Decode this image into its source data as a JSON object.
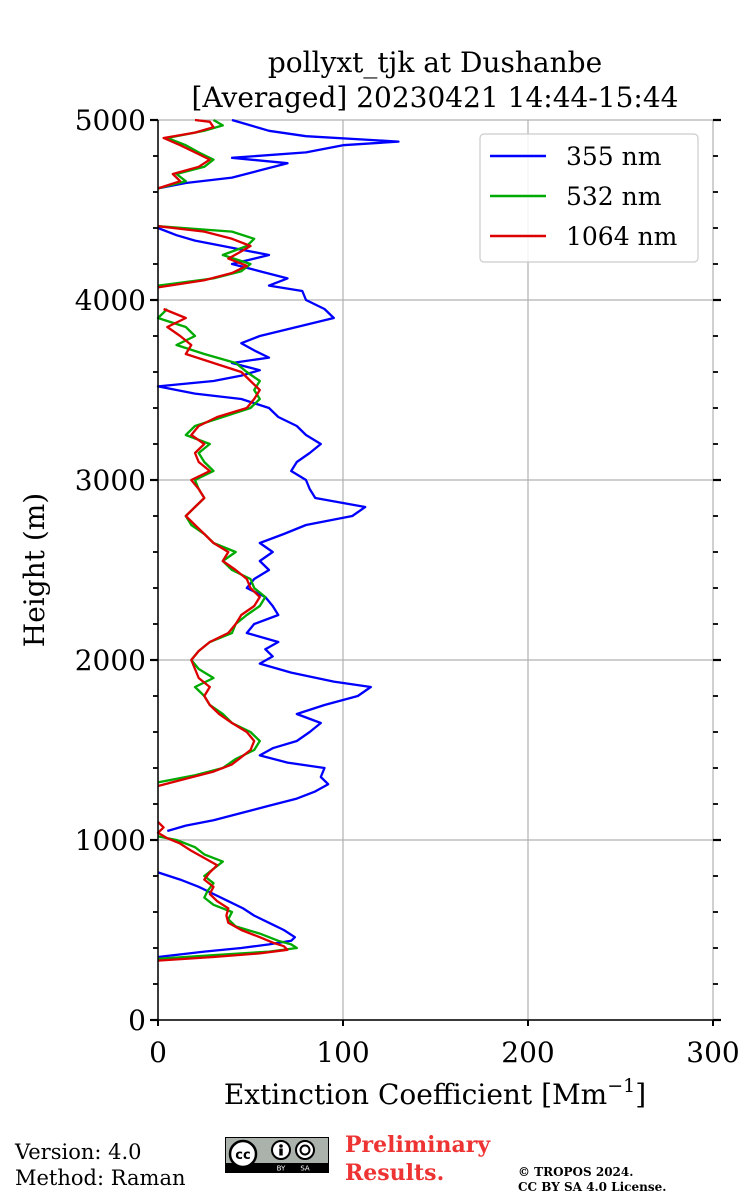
{
  "chart_data": {
    "type": "line",
    "title": "pollyxt_tjk at Dushanbe",
    "subtitle": "[Averaged] 20230421 14:44-15:44",
    "xlabel": "Extinction Coefficient [Mm",
    "xlabel_sup": "−1",
    "xlabel_close": "]",
    "ylabel": "Height (m)",
    "xlim": [
      0,
      300
    ],
    "ylim": [
      0,
      5000
    ],
    "xticks": [
      0,
      100,
      200,
      300
    ],
    "yticks": [
      0,
      1000,
      2000,
      3000,
      4000,
      5000
    ],
    "grid": true,
    "legend_position": "top-right",
    "series": [
      {
        "name": "355 nm",
        "color": "#0000ff",
        "segments": [
          {
            "y": [
              820,
              780,
              740,
              700,
              660,
              620,
              580,
              540,
              500,
              460,
              440,
              420,
              400,
              380,
              350
            ],
            "x": [
              0,
              12,
              22,
              30,
              38,
              46,
              52,
              60,
              68,
              74,
              72,
              60,
              45,
              25,
              0
            ]
          },
          {
            "y": [
              1050,
              1080,
              1110,
              1150,
              1190,
              1230,
              1270,
              1310,
              1350,
              1400,
              1430,
              1470,
              1510,
              1550,
              1600,
              1650,
              1700,
              1750,
              1800,
              1850,
              1880,
              1930,
              1980,
              2020,
              2060,
              2100,
              2150,
              2200,
              2250,
              2300,
              2350,
              2400,
              2450,
              2500,
              2550,
              2600,
              2650,
              2700,
              2750,
              2800,
              2850,
              2900,
              2950,
              3000,
              3050,
              3100,
              3150,
              3200,
              3250,
              3300,
              3350,
              3400,
              3450,
              3480,
              3520,
              3550,
              3580,
              3610,
              3650,
              3680,
              3720,
              3760,
              3800,
              3850,
              3900,
              3950,
              4000,
              4050,
              4080,
              4120,
              4160,
              4200,
              4250,
              4300,
              4330,
              4360,
              4400
            ],
            "x": [
              5,
              15,
              30,
              45,
              60,
              75,
              85,
              92,
              88,
              90,
              70,
              55,
              62,
              75,
              82,
              88,
              75,
              90,
              108,
              115,
              95,
              72,
              55,
              62,
              58,
              65,
              48,
              52,
              65,
              62,
              58,
              48,
              52,
              60,
              55,
              62,
              55,
              68,
              80,
              105,
              112,
              85,
              82,
              80,
              72,
              75,
              82,
              88,
              80,
              75,
              65,
              60,
              45,
              20,
              0,
              30,
              45,
              55,
              40,
              60,
              52,
              45,
              55,
              75,
              95,
              90,
              80,
              78,
              60,
              70,
              55,
              40,
              60,
              35,
              20,
              10,
              0
            ]
          },
          {
            "y": [
              4620,
              4650,
              4680,
              4720,
              4760,
              4790,
              4820,
              4860,
              4880,
              4910,
              4940,
              4970,
              5000
            ],
            "x": [
              0,
              15,
              40,
              55,
              70,
              40,
              80,
              100,
              130,
              80,
              60,
              50,
              40
            ]
          }
        ]
      },
      {
        "name": "532 nm",
        "color": "#00aa00",
        "segments": [
          {
            "y": [
              340,
              360,
              380,
              400,
              420,
              440,
              480,
              520,
              560,
              600,
              640,
              680,
              720,
              760,
              800,
              840,
              880,
              920,
              960,
              1000,
              1020
            ],
            "x": [
              0,
              30,
              60,
              75,
              72,
              65,
              55,
              42,
              38,
              40,
              30,
              25,
              27,
              30,
              25,
              30,
              35,
              25,
              20,
              10,
              0
            ]
          },
          {
            "y": [
              1320,
              1360,
              1400,
              1450,
              1500,
              1550,
              1600,
              1650,
              1700,
              1750,
              1800,
              1850,
              1900,
              1950,
              2000,
              2050,
              2100,
              2150,
              2200,
              2250,
              2300,
              2350,
              2400,
              2450,
              2500,
              2550,
              2600,
              2650,
              2700,
              2750,
              2800,
              2850,
              2900,
              2950,
              3000,
              3050,
              3100,
              3150,
              3200,
              3250,
              3300,
              3350,
              3400,
              3450,
              3500,
              3550,
              3600,
              3650,
              3700,
              3750,
              3800,
              3850,
              3900,
              3950
            ],
            "x": [
              0,
              20,
              35,
              42,
              52,
              55,
              50,
              40,
              35,
              28,
              25,
              20,
              30,
              22,
              18,
              22,
              28,
              40,
              42,
              48,
              55,
              58,
              52,
              50,
              40,
              35,
              42,
              30,
              25,
              18,
              15,
              20,
              25,
              22,
              20,
              30,
              25,
              22,
              28,
              15,
              20,
              35,
              50,
              55,
              52,
              55,
              48,
              42,
              25,
              10,
              20,
              15,
              0,
              5
            ]
          },
          {
            "y": [
              4080,
              4120,
              4160,
              4200,
              4250,
              4300,
              4340,
              4380,
              4410
            ],
            "x": [
              0,
              30,
              45,
              50,
              35,
              48,
              52,
              40,
              0
            ]
          },
          {
            "y": [
              4620,
              4660,
              4700,
              4740,
              4780,
              4820,
              4860,
              4900,
              4940,
              4970,
              5000
            ],
            "x": [
              0,
              15,
              10,
              25,
              30,
              22,
              15,
              5,
              25,
              35,
              30
            ]
          }
        ]
      },
      {
        "name": "1064 nm",
        "color": "#dd0000",
        "segments": [
          {
            "y": [
              330,
              350,
              370,
              390,
              410,
              430,
              460,
              500,
              540,
              580,
              620,
              660,
              700,
              740,
              780,
              820,
              860,
              900,
              940,
              980,
              1010,
              1040,
              1070,
              1100
            ],
            "x": [
              0,
              30,
              55,
              70,
              68,
              62,
              55,
              45,
              38,
              37,
              38,
              32,
              28,
              30,
              25,
              28,
              32,
              25,
              18,
              12,
              5,
              0,
              3,
              0
            ]
          },
          {
            "y": [
              1300,
              1340,
              1380,
              1420,
              1460,
              1500,
              1550,
              1600,
              1650,
              1700,
              1750,
              1800,
              1850,
              1900,
              1950,
              2000,
              2050,
              2100,
              2150,
              2200,
              2250,
              2300,
              2350,
              2400,
              2450,
              2500,
              2550,
              2600,
              2650,
              2700,
              2750,
              2800,
              2850,
              2900,
              2950,
              3000,
              3050,
              3100,
              3150,
              3200,
              3250,
              3300,
              3350,
              3400,
              3450,
              3500,
              3550,
              3600,
              3650,
              3700,
              3750,
              3800,
              3850,
              3900,
              3950
            ],
            "x": [
              0,
              15,
              30,
              40,
              45,
              50,
              52,
              48,
              40,
              33,
              28,
              25,
              28,
              22,
              20,
              18,
              22,
              28,
              38,
              42,
              45,
              52,
              55,
              50,
              48,
              42,
              35,
              38,
              30,
              25,
              20,
              15,
              20,
              25,
              22,
              18,
              28,
              22,
              20,
              25,
              18,
              22,
              32,
              48,
              52,
              55,
              50,
              45,
              30,
              15,
              18,
              12,
              5,
              15,
              3
            ]
          },
          {
            "y": [
              4070,
              4110,
              4150,
              4190,
              4230,
              4270,
              4300,
              4340,
              4380,
              4410
            ],
            "x": [
              0,
              25,
              40,
              48,
              38,
              45,
              50,
              40,
              25,
              0
            ]
          },
          {
            "y": [
              4620,
              4660,
              4700,
              4740,
              4780,
              4820,
              4860,
              4900,
              4930,
              4960,
              4990,
              5000
            ],
            "x": [
              0,
              12,
              8,
              22,
              28,
              20,
              12,
              3,
              20,
              30,
              28,
              20
            ]
          }
        ]
      }
    ]
  },
  "footer": {
    "version": "Version: 4.0",
    "method": "Method: Raman",
    "preliminary_line1": "Preliminary",
    "preliminary_line2": "Results.",
    "copyright_line1": "© TROPOS 2024.",
    "copyright_line2": "CC BY SA 4.0 License.",
    "cc_label": "cc",
    "cc_by": "BY",
    "cc_sa": "SA"
  }
}
